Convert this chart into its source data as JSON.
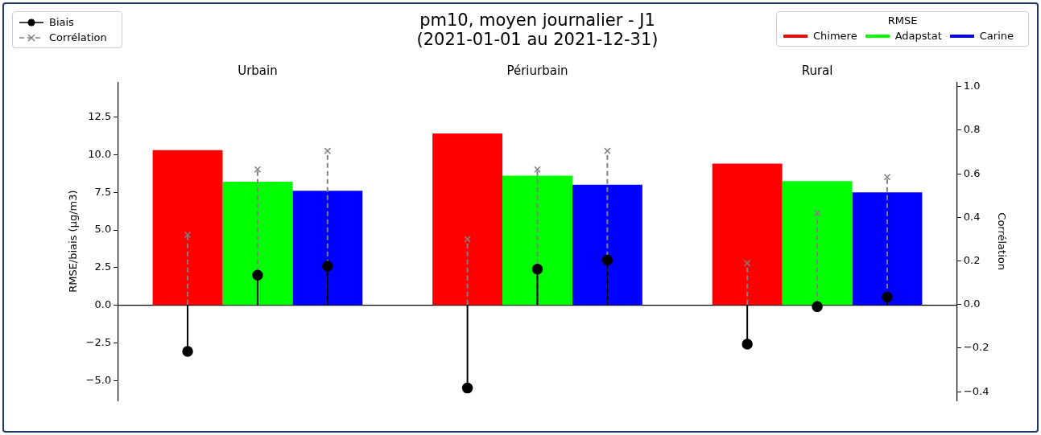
{
  "chart_data": {
    "type": "bar",
    "title": "pm10, moyen journalier - J1\n(2021-01-01 au 2021-12-31)",
    "ylabel": "RMSE/biais (μg/m3)",
    "y2label": "Corrélation",
    "legend": "top",
    "legend_title": "RMSE",
    "categories": [
      "Urbain",
      "Périurbain",
      "Rural"
    ],
    "ylim": [
      -6.3,
      14.8
    ],
    "yticks": [
      {
        "value": -5,
        "label": "−5.0"
      },
      {
        "value": -2.5,
        "label": "−2.5"
      },
      {
        "value": 0,
        "label": "0.0"
      },
      {
        "value": 2.5,
        "label": "2.5"
      },
      {
        "value": 5,
        "label": "5.0"
      },
      {
        "value": 7.5,
        "label": "7.5"
      },
      {
        "value": 10,
        "label": "10.0"
      },
      {
        "value": 12.5,
        "label": "12.5"
      }
    ],
    "y2lim": [
      -0.44,
      1.02
    ],
    "y2ticks": [
      {
        "value": -0.4,
        "label": "−0.4"
      },
      {
        "value": -0.2,
        "label": "−0.2"
      },
      {
        "value": 0,
        "label": "0.0"
      },
      {
        "value": 0.2,
        "label": "0.2"
      },
      {
        "value": 0.4,
        "label": "0.4"
      },
      {
        "value": 0.6,
        "label": "0.6"
      },
      {
        "value": 0.8,
        "label": "0.8"
      },
      {
        "value": 1,
        "label": "1.0"
      }
    ],
    "series": [
      {
        "name": "Chimere",
        "type": "bar",
        "color": "#ff0000",
        "values": [
          10.3,
          11.4,
          9.4
        ]
      },
      {
        "name": "Adapstat",
        "type": "bar",
        "color": "#00ff00",
        "values": [
          8.2,
          8.6,
          8.25
        ]
      },
      {
        "name": "Carine",
        "type": "bar",
        "color": "#0000ff",
        "values": [
          7.6,
          8.0,
          7.5
        ]
      },
      {
        "name": "Biais",
        "type": "lollipop",
        "color": "#000000",
        "marker": "circle",
        "line_style": "solid",
        "values": [
          -3.05,
          -5.48,
          -2.57
        ]
      },
      {
        "type": "lollipop",
        "color": "#000000",
        "marker": "circle",
        "line_style": "solid",
        "values": [
          2.0,
          2.4,
          -0.08
        ]
      },
      {
        "type": "lollipop",
        "color": "#000000",
        "marker": "circle",
        "line_style": "solid",
        "values": [
          2.6,
          3.0,
          0.55
        ]
      },
      {
        "name": "Corrélation",
        "type": "lollipop",
        "axis": "y2",
        "color": "#808080",
        "marker": "cross",
        "line_style": "dashed",
        "values": [
          0.32,
          0.3,
          0.19
        ]
      },
      {
        "type": "lollipop",
        "axis": "y2",
        "color": "#808080",
        "marker": "cross",
        "line_style": "dashed",
        "values": [
          0.62,
          0.62,
          0.42
        ]
      },
      {
        "type": "lollipop",
        "axis": "y2",
        "color": "#808080",
        "marker": "cross",
        "line_style": "dashed",
        "values": [
          0.705,
          0.705,
          0.585
        ]
      }
    ]
  }
}
